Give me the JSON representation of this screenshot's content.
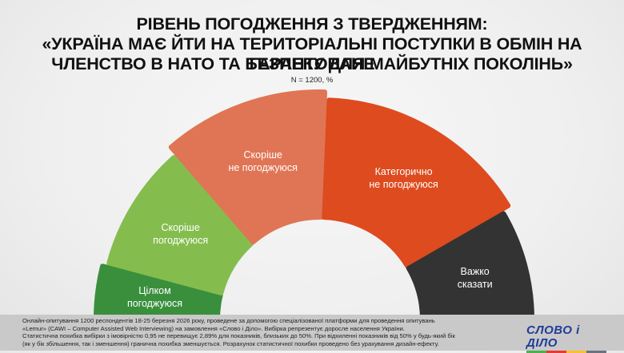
{
  "header": {
    "title_line1": "РІВЕНЬ ПОГОДЖЕННЯ З ТВЕРДЖЕННЯМ:",
    "title_line2": "«УКРАЇНА МАЄ ЙТИ НА ТЕРИТОРІАЛЬНІ ПОСТУПКИ В ОБМІН НА ГАРАНТОВАНЕ",
    "title_line3": "ЧЛЕНСТВО В НАТО ТА БЕЗПЕКУ ДЛЯ МАЙБУТНІХ ПОКОЛІНЬ»",
    "subtitle": "N = 1200, %"
  },
  "chart_data": {
    "type": "pie",
    "variant": "semicircle-gauge",
    "title": "Рівень погодження з твердженням: «Україна має йти на територіальні поступки в обмін на гарантоване членство в НАТО та безпеку для майбутніх поколінь»",
    "subtitle": "N = 1200, %",
    "categories": [
      "Цілком погоджуюся",
      "Скоріше погоджуюся",
      "Скоріше не погоджуюся",
      "Категорично не погоджуюся",
      "Важко сказати"
    ],
    "values": [
      8,
      19,
      24,
      32,
      17
    ],
    "values_note": "No numeric labels shown on chart; values estimated from arc angles",
    "colors": [
      "#3a8f3c",
      "#84bd4e",
      "#e07555",
      "#dd4b1f",
      "#333333"
    ]
  },
  "segments": [
    {
      "line1": "Цілком",
      "line2": "погоджуюся"
    },
    {
      "line1": "Скоріше",
      "line2": "погоджуюся"
    },
    {
      "line1": "Скоріше",
      "line2": "не погоджуюся"
    },
    {
      "line1": "Категорично",
      "line2": "не погоджуюся"
    },
    {
      "line1": "Важко",
      "line2": "сказати"
    }
  ],
  "footer": {
    "line1": "Онлайн-опитування 1200 респондентів 18-25 березня 2026 року, проведене за допомогою спеціалізованої платформи для проведення опитувань",
    "line2": "«Lemur» (CAWI – Computer Assisted Web Interviewing) на замовлення «Слово і Діло». Вибірка репрезентує доросле населення України.",
    "line3": "Статистична похибка вибірки з імовірністю 0,95 не перевищує 2,89% для показників, близьких до 50%. При відхиленні показників від 50% у будь-який бік",
    "line4": "(як у бік збільшення, так і зменшення) гранична похибка зменшується. Розрахунок статистичної похибки проведено без урахування дизайн-ефекту."
  },
  "logo": {
    "text": "СЛОВО і ДІЛО",
    "bar_colors": [
      "#4caf50",
      "#e53935",
      "#fbc02d",
      "#6b7280"
    ]
  }
}
